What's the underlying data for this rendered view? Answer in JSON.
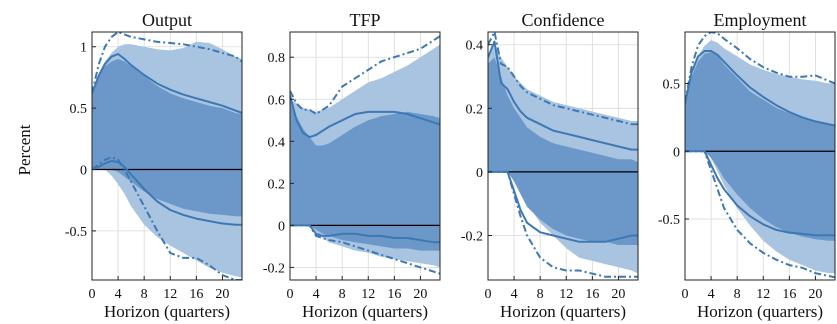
{
  "colors": {
    "band_outer": "#a9c4e0",
    "band_inner": "#6b98c9",
    "line": "#3d78b5",
    "zero": "#000000",
    "grid": "#d9d9d9"
  },
  "figure": {
    "ylabel": "Percent"
  },
  "chart_data": [
    {
      "type": "area",
      "title": "Output",
      "xlabel": "Horizon (quarters)",
      "x_ticks": [
        "0",
        "4",
        "8",
        "12",
        "16",
        "20"
      ],
      "y_ticks": [
        "-0.5",
        "0",
        "0.5",
        "1"
      ],
      "y_tick_values": [
        -0.5,
        0,
        0.5,
        1
      ],
      "xlim": [
        0,
        23
      ],
      "ylim": [
        -0.9,
        1.12
      ],
      "grid": true,
      "x": [
        0,
        1,
        2,
        3,
        4,
        5,
        6,
        8,
        10,
        12,
        14,
        16,
        18,
        20,
        22,
        23
      ],
      "series": [
        {
          "role": "band_outer_top",
          "values": [
            0.62,
            0.78,
            0.88,
            0.95,
            1.0,
            1.02,
            1.02,
            1.0,
            0.98,
            0.97,
            0.99,
            1.04,
            1.03,
            0.98,
            0.92,
            0.9
          ]
        },
        {
          "role": "band_outer_bottom",
          "values": [
            0,
            0,
            0,
            -0.05,
            -0.12,
            -0.2,
            -0.3,
            -0.45,
            -0.55,
            -0.62,
            -0.68,
            -0.74,
            -0.8,
            -0.84,
            -0.87,
            -0.88
          ]
        },
        {
          "role": "band_inner_top",
          "values": [
            0.62,
            0.76,
            0.84,
            0.88,
            0.9,
            0.88,
            0.84,
            0.76,
            0.68,
            0.62,
            0.58,
            0.55,
            0.52,
            0.5,
            0.46,
            0.45
          ]
        },
        {
          "role": "band_inner_bottom",
          "values": [
            0,
            0,
            0,
            0,
            -0.02,
            -0.06,
            -0.1,
            -0.18,
            -0.24,
            -0.28,
            -0.32,
            -0.34,
            -0.36,
            -0.37,
            -0.38,
            -0.38
          ]
        },
        {
          "role": "line_upper",
          "values": [
            0.62,
            0.76,
            0.86,
            0.92,
            0.94,
            0.9,
            0.85,
            0.77,
            0.7,
            0.65,
            0.61,
            0.58,
            0.55,
            0.52,
            0.48,
            0.46
          ]
        },
        {
          "role": "line_lower",
          "values": [
            0,
            0.02,
            0.05,
            0.07,
            0.06,
            0.02,
            -0.04,
            -0.16,
            -0.26,
            -0.33,
            -0.37,
            -0.4,
            -0.42,
            -0.44,
            -0.45,
            -0.45
          ]
        },
        {
          "role": "dash_upper",
          "values": [
            0.62,
            0.85,
            1.0,
            1.08,
            1.12,
            1.1,
            1.08,
            1.06,
            1.04,
            1.03,
            1.02,
            1.0,
            0.98,
            0.95,
            0.92,
            0.88
          ]
        },
        {
          "role": "dash_lower",
          "values": [
            0,
            0.04,
            0.08,
            0.1,
            0.08,
            0.0,
            -0.1,
            -0.3,
            -0.5,
            -0.68,
            -0.72,
            -0.72,
            -0.78,
            -0.86,
            -0.9,
            -0.9
          ]
        }
      ]
    },
    {
      "type": "area",
      "title": "TFP",
      "xlabel": "Horizon (quarters)",
      "x_ticks": [
        "0",
        "4",
        "8",
        "12",
        "16",
        "20"
      ],
      "y_ticks": [
        "-0.2",
        "0",
        "0.2",
        "0.4",
        "0.6",
        "0.8"
      ],
      "y_tick_values": [
        -0.2,
        0,
        0.2,
        0.4,
        0.6,
        0.8
      ],
      "xlim": [
        0,
        23
      ],
      "ylim": [
        -0.26,
        0.92
      ],
      "grid": true,
      "x": [
        0,
        1,
        2,
        3,
        4,
        5,
        6,
        8,
        10,
        12,
        14,
        16,
        18,
        20,
        22,
        23
      ],
      "series": [
        {
          "role": "band_outer_top",
          "values": [
            0.6,
            0.58,
            0.56,
            0.55,
            0.54,
            0.55,
            0.56,
            0.6,
            0.64,
            0.68,
            0.7,
            0.73,
            0.76,
            0.8,
            0.84,
            0.86
          ]
        },
        {
          "role": "band_outer_bottom",
          "values": [
            0,
            0,
            0,
            0,
            -0.03,
            -0.06,
            -0.08,
            -0.1,
            -0.12,
            -0.13,
            -0.15,
            -0.16,
            -0.17,
            -0.18,
            -0.19,
            -0.2
          ]
        },
        {
          "role": "band_inner_top",
          "values": [
            0.6,
            0.52,
            0.46,
            0.42,
            0.38,
            0.38,
            0.39,
            0.43,
            0.47,
            0.5,
            0.52,
            0.53,
            0.54,
            0.53,
            0.52,
            0.51
          ]
        },
        {
          "role": "band_inner_bottom",
          "values": [
            0,
            0,
            0,
            0,
            -0.02,
            -0.04,
            -0.05,
            -0.07,
            -0.08,
            -0.09,
            -0.1,
            -0.11,
            -0.11,
            -0.12,
            -0.12,
            -0.12
          ]
        },
        {
          "role": "line_upper",
          "values": [
            0.62,
            0.5,
            0.44,
            0.42,
            0.43,
            0.45,
            0.47,
            0.5,
            0.53,
            0.54,
            0.54,
            0.54,
            0.53,
            0.51,
            0.49,
            0.48
          ]
        },
        {
          "role": "line_lower",
          "values": [
            0,
            0,
            0,
            0,
            -0.04,
            -0.05,
            -0.05,
            -0.04,
            -0.04,
            -0.05,
            -0.05,
            -0.06,
            -0.06,
            -0.07,
            -0.08,
            -0.08
          ]
        },
        {
          "role": "dash_upper",
          "values": [
            0.64,
            0.58,
            0.55,
            0.55,
            0.53,
            0.55,
            0.57,
            0.66,
            0.7,
            0.74,
            0.78,
            0.8,
            0.82,
            0.84,
            0.88,
            0.9
          ]
        },
        {
          "role": "dash_lower",
          "values": [
            0,
            0,
            0,
            0,
            -0.05,
            -0.06,
            -0.07,
            -0.08,
            -0.1,
            -0.12,
            -0.14,
            -0.16,
            -0.18,
            -0.2,
            -0.22,
            -0.23
          ]
        }
      ]
    },
    {
      "type": "area",
      "title": "Confidence",
      "xlabel": "Horizon (quarters)",
      "x_ticks": [
        "0",
        "4",
        "8",
        "12",
        "16",
        "20"
      ],
      "y_ticks": [
        "-0.2",
        "0",
        "0.2",
        "0.4"
      ],
      "y_tick_values": [
        -0.2,
        0,
        0.2,
        0.4
      ],
      "xlim": [
        0,
        23
      ],
      "ylim": [
        -0.34,
        0.44
      ],
      "grid": true,
      "x": [
        0,
        1,
        2,
        3,
        4,
        5,
        6,
        8,
        10,
        12,
        14,
        16,
        18,
        20,
        22,
        23
      ],
      "series": [
        {
          "role": "band_outer_top",
          "values": [
            0.36,
            0.4,
            0.36,
            0.33,
            0.3,
            0.28,
            0.26,
            0.24,
            0.22,
            0.21,
            0.2,
            0.19,
            0.18,
            0.17,
            0.16,
            0.16
          ]
        },
        {
          "role": "band_outer_bottom",
          "values": [
            0,
            0,
            0,
            0,
            -0.02,
            -0.06,
            -0.1,
            -0.16,
            -0.2,
            -0.24,
            -0.27,
            -0.28,
            -0.29,
            -0.3,
            -0.31,
            -0.32
          ]
        },
        {
          "role": "band_inner_top",
          "values": [
            0.34,
            0.36,
            0.3,
            0.24,
            0.2,
            0.17,
            0.14,
            0.11,
            0.09,
            0.08,
            0.07,
            0.06,
            0.05,
            0.04,
            0.04,
            0.03
          ]
        },
        {
          "role": "band_inner_bottom",
          "values": [
            0,
            0,
            0,
            0,
            -0.03,
            -0.07,
            -0.11,
            -0.15,
            -0.18,
            -0.2,
            -0.21,
            -0.22,
            -0.22,
            -0.23,
            -0.23,
            -0.23
          ]
        },
        {
          "role": "line_upper",
          "values": [
            0.36,
            0.41,
            0.28,
            0.26,
            0.22,
            0.19,
            0.17,
            0.15,
            0.13,
            0.12,
            0.11,
            0.1,
            0.09,
            0.08,
            0.07,
            0.07
          ]
        },
        {
          "role": "line_lower",
          "values": [
            0,
            0,
            0,
            0,
            -0.06,
            -0.12,
            -0.16,
            -0.19,
            -0.2,
            -0.21,
            -0.22,
            -0.22,
            -0.22,
            -0.21,
            -0.2,
            -0.2
          ]
        },
        {
          "role": "dash_upper",
          "values": [
            0.4,
            0.44,
            0.34,
            0.33,
            0.3,
            0.27,
            0.25,
            0.23,
            0.21,
            0.2,
            0.19,
            0.18,
            0.17,
            0.16,
            0.15,
            0.15
          ]
        },
        {
          "role": "dash_lower",
          "values": [
            0,
            0,
            0,
            0,
            -0.07,
            -0.14,
            -0.2,
            -0.27,
            -0.3,
            -0.31,
            -0.31,
            -0.32,
            -0.33,
            -0.33,
            -0.33,
            -0.33
          ]
        }
      ]
    },
    {
      "type": "area",
      "title": "Employment",
      "xlabel": "Horizon (quarters)",
      "x_ticks": [
        "0",
        "4",
        "8",
        "12",
        "16",
        "20"
      ],
      "y_ticks": [
        "-0.5",
        "0",
        "0.5"
      ],
      "y_tick_values": [
        -0.5,
        0,
        0.5
      ],
      "xlim": [
        0,
        23
      ],
      "ylim": [
        -0.95,
        0.88
      ],
      "grid": true,
      "x": [
        0,
        1,
        2,
        3,
        4,
        5,
        6,
        8,
        10,
        12,
        14,
        16,
        18,
        20,
        22,
        23
      ],
      "series": [
        {
          "role": "band_outer_top",
          "values": [
            0.35,
            0.55,
            0.7,
            0.78,
            0.82,
            0.8,
            0.76,
            0.7,
            0.64,
            0.6,
            0.57,
            0.55,
            0.53,
            0.52,
            0.5,
            0.5
          ]
        },
        {
          "role": "band_outer_bottom",
          "values": [
            0,
            0,
            0,
            0,
            -0.05,
            -0.15,
            -0.25,
            -0.42,
            -0.55,
            -0.66,
            -0.74,
            -0.8,
            -0.84,
            -0.88,
            -0.9,
            -0.9
          ]
        },
        {
          "role": "band_inner_top",
          "values": [
            0.35,
            0.55,
            0.66,
            0.72,
            0.73,
            0.7,
            0.64,
            0.54,
            0.44,
            0.38,
            0.32,
            0.28,
            0.25,
            0.22,
            0.2,
            0.2
          ]
        },
        {
          "role": "band_inner_bottom",
          "values": [
            0,
            0,
            0,
            0,
            -0.05,
            -0.12,
            -0.2,
            -0.32,
            -0.42,
            -0.5,
            -0.56,
            -0.6,
            -0.63,
            -0.65,
            -0.66,
            -0.66
          ]
        },
        {
          "role": "line_upper",
          "values": [
            0.35,
            0.58,
            0.7,
            0.74,
            0.74,
            0.71,
            0.66,
            0.56,
            0.47,
            0.4,
            0.34,
            0.29,
            0.25,
            0.22,
            0.2,
            0.19
          ]
        },
        {
          "role": "line_lower",
          "values": [
            0,
            0,
            0,
            0,
            -0.1,
            -0.2,
            -0.28,
            -0.4,
            -0.48,
            -0.54,
            -0.58,
            -0.6,
            -0.61,
            -0.62,
            -0.62,
            -0.62
          ]
        },
        {
          "role": "dash_upper",
          "values": [
            0.36,
            0.62,
            0.78,
            0.85,
            0.88,
            0.87,
            0.83,
            0.76,
            0.68,
            0.62,
            0.58,
            0.55,
            0.55,
            0.56,
            0.52,
            0.5
          ]
        },
        {
          "role": "dash_lower",
          "values": [
            0,
            0,
            0,
            0,
            -0.14,
            -0.28,
            -0.42,
            -0.58,
            -0.68,
            -0.75,
            -0.8,
            -0.84,
            -0.86,
            -0.9,
            -0.92,
            -0.93
          ]
        }
      ]
    }
  ]
}
